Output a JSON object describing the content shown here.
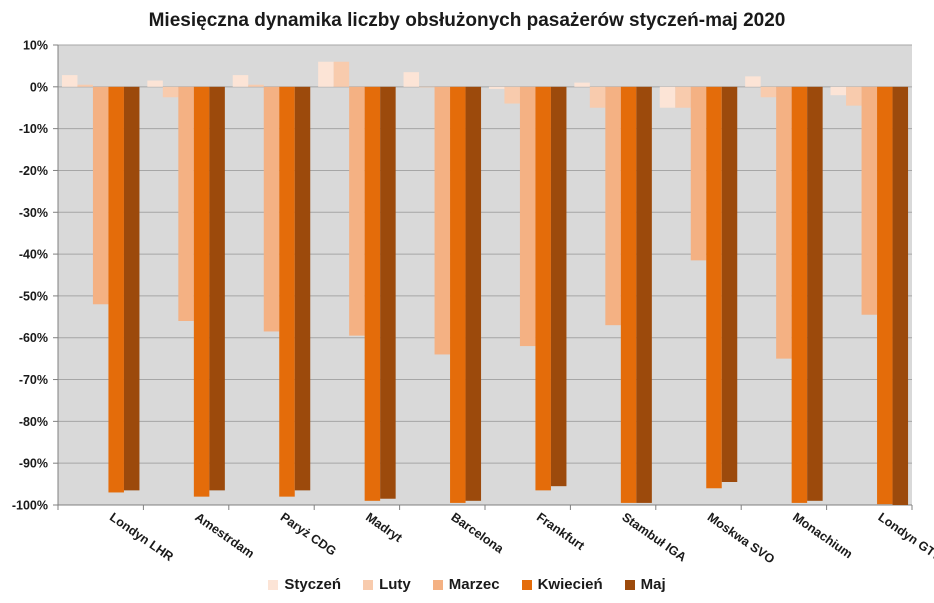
{
  "chart_data": {
    "type": "bar",
    "title": "Miesięczna dynamika liczby obsłużonych pasażerów styczeń-maj 2020",
    "xlabel": "",
    "ylabel": "",
    "ylim": [
      -100,
      10
    ],
    "yticks": [
      10,
      0,
      -10,
      -20,
      -30,
      -40,
      -50,
      -60,
      -70,
      -80,
      -90,
      -100
    ],
    "ytick_labels": [
      "10%",
      "0%",
      "-10%",
      "-20%",
      "-30%",
      "-40%",
      "-50%",
      "-60%",
      "-70%",
      "-80%",
      "-90%",
      "-100%"
    ],
    "grid": true,
    "legend_position": "bottom",
    "categories": [
      "Londyn LHR",
      "Amestrdam",
      "Paryż CDG",
      "Madryt",
      "Barcelona",
      "Frankfurt",
      "Stambuł IGA",
      "Moskwa SVO",
      "Monachium",
      "Londyn GTW"
    ],
    "series": [
      {
        "name": "Styczeń",
        "color": "#FCE4D6",
        "values": [
          2.8,
          1.5,
          2.8,
          6.0,
          3.5,
          -0.5,
          1.0,
          -5.0,
          2.5,
          -2.0
        ]
      },
      {
        "name": "Luty",
        "color": "#F8CBAD",
        "values": [
          0.5,
          -2.5,
          0.5,
          6.0,
          0.0,
          -4.0,
          -5.0,
          -5.0,
          -2.5,
          -4.5
        ]
      },
      {
        "name": "Marzec",
        "color": "#F4B183",
        "values": [
          -52,
          -56,
          -58.5,
          -59.5,
          -64,
          -62,
          -57,
          -41.5,
          -65,
          -54.5
        ]
      },
      {
        "name": "Kwiecień",
        "color": "#E46C0A",
        "values": [
          -97,
          -98,
          -98,
          -99,
          -99.5,
          -96.5,
          -99.5,
          -96,
          -99.5,
          -99.8
        ]
      },
      {
        "name": "Maj",
        "color": "#9C4A0C",
        "values": [
          -96.5,
          -96.5,
          -96.5,
          -98.5,
          -99,
          -95.5,
          -99.5,
          -94.5,
          -99,
          -100
        ]
      }
    ],
    "plot_background": "#D9D9D9",
    "gridline_color": "#A6A6A6"
  }
}
